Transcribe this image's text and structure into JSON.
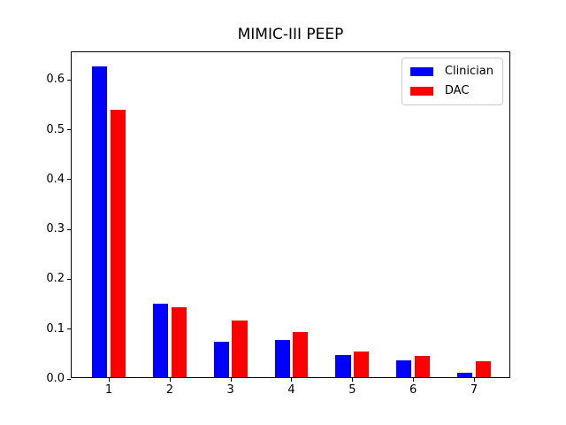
{
  "figure": {
    "background": "#ffffff",
    "text_color": "#000000"
  },
  "chart_data": {
    "type": "bar",
    "title": "MIMIC-III PEEP",
    "xlabel": "",
    "ylabel": "",
    "categories": [
      "1",
      "2",
      "3",
      "4",
      "5",
      "6",
      "7"
    ],
    "series": [
      {
        "name": "Clinician",
        "color": "#0000ff",
        "values": [
          0.624,
          0.147,
          0.071,
          0.074,
          0.044,
          0.033,
          0.009
        ]
      },
      {
        "name": "DAC",
        "color": "#ff0000",
        "values": [
          0.537,
          0.14,
          0.114,
          0.091,
          0.052,
          0.042,
          0.032
        ]
      }
    ],
    "ylim": [
      0.0,
      0.6556
    ],
    "yticks": [
      0.0,
      0.1,
      0.2,
      0.3,
      0.4,
      0.5,
      0.6
    ],
    "ytick_labels": [
      "0.0",
      "0.1",
      "0.2",
      "0.3",
      "0.4",
      "0.5",
      "0.6"
    ],
    "grid": false,
    "legend_position": "upper right"
  }
}
